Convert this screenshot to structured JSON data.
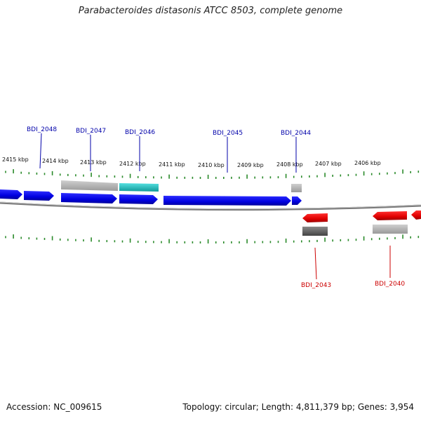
{
  "title": "Parabacteroides distasonis ATCC 8503, complete genome",
  "footer": {
    "accession": "Accession: NC_009615",
    "summary": "Topology: circular; Length: 4,811,379 bp; Genes: 3,954"
  },
  "colors": {
    "forward_cds": "#0000e6",
    "reverse_cds": "#e60000",
    "fwd_label": "#0000aa",
    "rev_label": "#cc0000",
    "track_gray": "#b5b5b5",
    "highlight": "#22c8c8",
    "tick": "#2a8a2a",
    "backbone": "#808080"
  },
  "kbp_ticks": [
    "2415 kbp",
    "2414 kbp",
    "2413 kbp",
    "2412 kbp",
    "2411 kbp",
    "2410 kbp",
    "2409 kbp",
    "2408 kbp",
    "2407 kbp",
    "2406 kbp"
  ],
  "forward_genes": [
    {
      "name": "BDI_2048"
    },
    {
      "name": "BDI_2047"
    },
    {
      "name": "BDI_2046"
    },
    {
      "name": "BDI_2045"
    },
    {
      "name": "BDI_2044"
    }
  ],
  "reverse_genes": [
    {
      "name": "BDI_2043"
    },
    {
      "name": "BDI_2040"
    }
  ]
}
